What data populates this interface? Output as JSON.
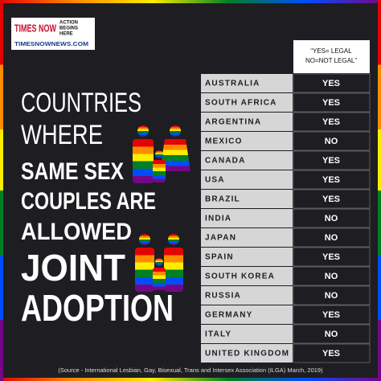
{
  "logo": {
    "brand": "TIMES NOW",
    "tagline": [
      "ACTION",
      "BEGINS",
      "HERE"
    ],
    "website": "TIMESNOWNEWS.COM"
  },
  "title": {
    "lines": [
      "COUNTRIES",
      "WHERE",
      "SAME SEX",
      "COUPLES ARE",
      "ALLOWED",
      "JOINT",
      "ADOPTION"
    ]
  },
  "table": {
    "header": [
      "“YES= LEGAL",
      "NO=NOT LEGAL”"
    ],
    "rows": [
      [
        "AUSTRALIA",
        "YES"
      ],
      [
        "SOUTH AFRICA",
        "YES"
      ],
      [
        "ARGENTINA",
        "YES"
      ],
      [
        "MEXICO",
        "NO"
      ],
      [
        "CANADA",
        "YES"
      ],
      [
        "USA",
        "YES"
      ],
      [
        "BRAZIL",
        "YES"
      ],
      [
        "INDIA",
        "NO"
      ],
      [
        "JAPAN",
        "NO"
      ],
      [
        "SPAIN",
        "YES"
      ],
      [
        "SOUTH KOREA",
        "NO"
      ],
      [
        "RUSSIA",
        "NO"
      ],
      [
        "GERMANY",
        "YES"
      ],
      [
        "ITALY",
        "NO"
      ],
      [
        "UNITED KINGDOM",
        "YES"
      ]
    ]
  },
  "source": "(Source - International Lesbian, Gay, Bisexual, Trans and Intersex Association (ILGA) March, 2019)"
}
